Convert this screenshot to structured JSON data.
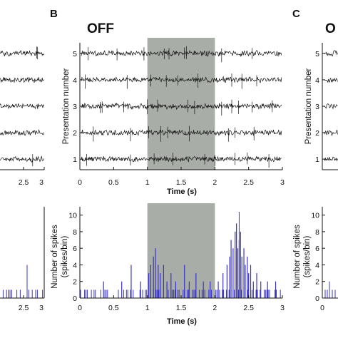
{
  "colors": {
    "trace": "#111111",
    "stim_shade": "#a9ada8",
    "histogram": "#3a34c4",
    "axis": "#111111"
  },
  "panels": {
    "left_letter": "",
    "mid_letter": "B",
    "right_letter": "C",
    "mid_title": "OFF",
    "right_title": "O"
  },
  "chart_data": [
    {
      "panel": "B-raster",
      "type": "line",
      "title": "OFF",
      "xlabel": "Time (s)",
      "ylabel": "Presentation number",
      "xlim": [
        0,
        3
      ],
      "ylim": [
        0.6,
        5.4
      ],
      "x_ticks": [
        "0",
        "0.5",
        "1",
        "1.5",
        "2",
        "2.5",
        "3"
      ],
      "y_ticks": [
        "1",
        "2",
        "3",
        "4",
        "5"
      ],
      "stimulus_window": [
        1.0,
        2.0
      ],
      "series": [
        {
          "values": [
            5
          ]
        },
        {
          "values": [
            4
          ]
        },
        {
          "values": [
            3
          ]
        },
        {
          "values": [
            2
          ]
        },
        {
          "values": [
            1
          ]
        }
      ],
      "spikes": [
        {
          "presentation": 5,
          "times": [
            0.12,
            0.55,
            0.95,
            1.25,
            1.32,
            1.55,
            1.58,
            2.1,
            2.55
          ]
        },
        {
          "presentation": 4,
          "times": [
            0.08,
            0.7,
            1.05,
            1.28,
            1.45,
            1.75,
            2.25,
            2.4,
            2.62
          ]
        },
        {
          "presentation": 3,
          "times": [
            0.3,
            0.33,
            0.65,
            1.0,
            1.15,
            1.6,
            1.7,
            2.1,
            2.25,
            2.35,
            2.55,
            2.85
          ]
        },
        {
          "presentation": 2,
          "times": [
            0.2,
            0.75,
            1.02,
            1.2,
            1.3,
            1.62,
            2.2,
            2.3,
            2.58
          ]
        },
        {
          "presentation": 1,
          "times": [
            0.1,
            0.75,
            1.1,
            1.38,
            1.85,
            2.0,
            2.3,
            2.48,
            2.8
          ]
        }
      ]
    },
    {
      "panel": "B-histogram",
      "type": "bar",
      "xlabel": "Time (s)",
      "ylabel_line1": "Number of spikes",
      "ylabel_line2": "(spikes/bin)",
      "xlim": [
        0,
        3
      ],
      "ylim": [
        0,
        11
      ],
      "x_ticks": [
        "0",
        "0.5",
        "1",
        "1.5",
        "2",
        "2.5",
        "3"
      ],
      "y_ticks": [
        "0",
        "2",
        "4",
        "6",
        "8",
        "10"
      ],
      "stimulus_window": [
        1.0,
        2.0
      ],
      "bin_width_s": 0.01,
      "spikes_per_bin_gt1": [
        [
          0.35,
          2
        ],
        [
          0.62,
          2
        ],
        [
          0.76,
          4
        ],
        [
          0.9,
          2
        ],
        [
          1.02,
          3
        ],
        [
          1.05,
          4
        ],
        [
          1.09,
          5
        ],
        [
          1.12,
          6
        ],
        [
          1.16,
          4
        ],
        [
          1.19,
          3
        ],
        [
          1.24,
          4
        ],
        [
          1.29,
          2
        ],
        [
          1.35,
          3
        ],
        [
          1.42,
          2
        ],
        [
          1.55,
          4
        ],
        [
          1.62,
          2
        ],
        [
          1.72,
          3
        ],
        [
          1.83,
          2
        ],
        [
          1.93,
          2
        ],
        [
          2.05,
          2
        ],
        [
          2.12,
          3
        ],
        [
          2.18,
          4
        ],
        [
          2.22,
          5
        ],
        [
          2.24,
          7
        ],
        [
          2.27,
          6
        ],
        [
          2.3,
          8
        ],
        [
          2.32,
          9
        ],
        [
          2.34,
          6
        ],
        [
          2.36,
          7
        ],
        [
          2.38,
          8
        ],
        [
          2.4,
          5
        ],
        [
          2.43,
          6
        ],
        [
          2.45,
          4
        ],
        [
          2.48,
          5
        ],
        [
          2.5,
          3
        ],
        [
          2.53,
          4
        ],
        [
          2.57,
          2
        ],
        [
          2.62,
          3
        ],
        [
          2.68,
          2
        ],
        [
          2.78,
          2
        ],
        [
          2.9,
          2
        ]
      ]
    },
    {
      "panel": "A-raster-partial",
      "type": "line",
      "x_ticks": [
        "2.5",
        "3"
      ],
      "xlim": [
        2,
        3
      ],
      "series": [
        {
          "values": [
            5
          ]
        },
        {
          "values": [
            4
          ]
        },
        {
          "values": [
            3
          ]
        },
        {
          "values": [
            2
          ]
        },
        {
          "values": [
            1
          ]
        }
      ]
    },
    {
      "panel": "A-histogram-partial",
      "type": "bar",
      "x_ticks": [
        "2.5",
        "3"
      ],
      "xlim": [
        2,
        3
      ]
    },
    {
      "panel": "C-raster-partial",
      "type": "line",
      "ylabel": "Presentation number",
      "y_ticks": [
        "1",
        "2",
        "3",
        "4",
        "5"
      ],
      "series": [
        {
          "values": [
            5
          ]
        },
        {
          "values": [
            4
          ]
        },
        {
          "values": [
            3
          ]
        },
        {
          "values": [
            2
          ]
        },
        {
          "values": [
            1
          ]
        }
      ]
    },
    {
      "panel": "C-histogram-partial",
      "type": "bar",
      "ylabel_line1": "Number of spikes",
      "ylabel_line2": "(spikes/bin)",
      "y_ticks": [
        "0",
        "2",
        "4",
        "6",
        "8",
        "10"
      ],
      "x_ticks": [
        "0"
      ]
    }
  ]
}
